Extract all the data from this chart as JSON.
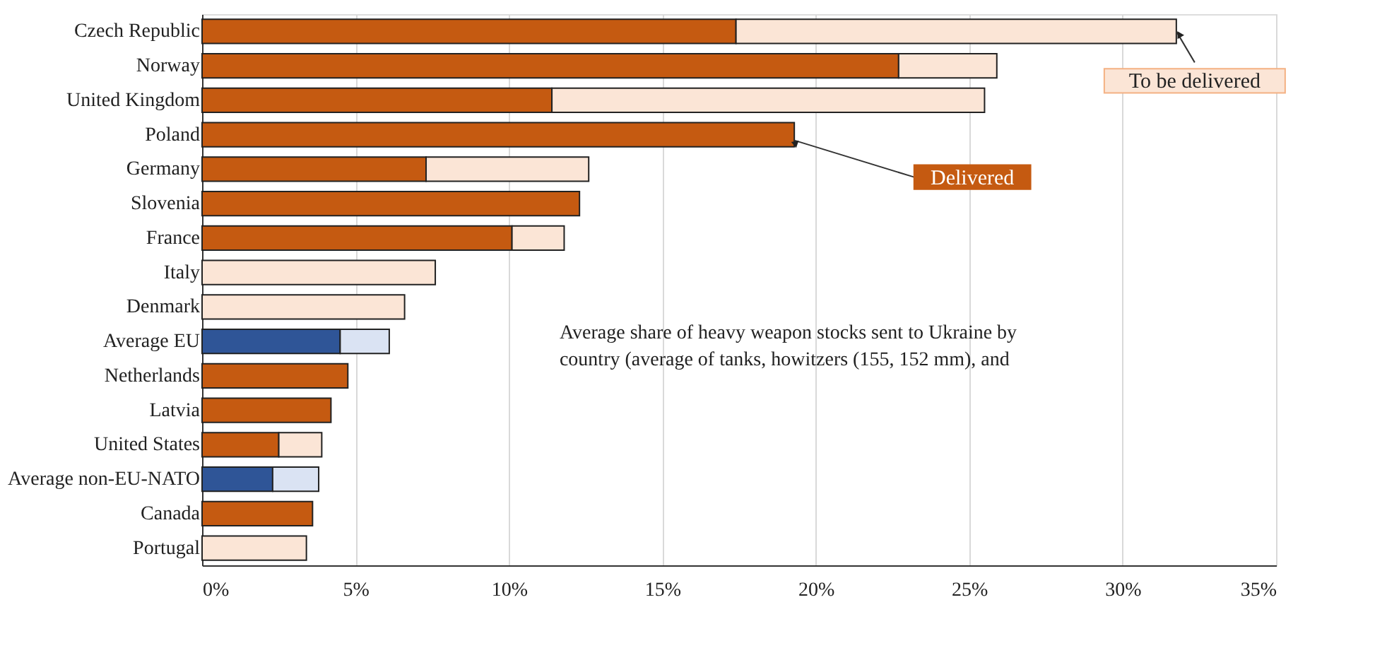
{
  "chart_data": {
    "type": "bar",
    "orientation": "horizontal",
    "stacked": true,
    "categories": [
      "Czech Republic",
      "Norway",
      "United Kingdom",
      "Poland",
      "Germany",
      "Slovenia",
      "France",
      "Italy",
      "Denmark",
      "Average EU",
      "Netherlands",
      "Latvia",
      "United States",
      "Average non-EU-NATO",
      "Canada",
      "Portugal"
    ],
    "series": [
      {
        "name": "Delivered",
        "color": "#c55a11",
        "colors": [
          "#c55a11",
          "#c55a11",
          "#c55a11",
          "#c55a11",
          "#c55a11",
          "#c55a11",
          "#c55a11",
          "#c55a11",
          "#c55a11",
          "#2f5597",
          "#c55a11",
          "#c55a11",
          "#c55a11",
          "#2f5597",
          "#c55a11",
          "#c55a11"
        ],
        "values": [
          17.4,
          22.7,
          11.4,
          19.3,
          7.3,
          12.3,
          10.1,
          null,
          null,
          4.5,
          4.75,
          4.2,
          2.5,
          2.3,
          3.6,
          null
        ]
      },
      {
        "name": "To be delivered",
        "color": "#fbe5d6",
        "colors": [
          "#fbe5d6",
          "#fbe5d6",
          "#fbe5d6",
          "#fbe5d6",
          "#fbe5d6",
          "#fbe5d6",
          "#fbe5d6",
          "#fbe5d6",
          "#fbe5d6",
          "#dae3f3",
          "#fbe5d6",
          "#fbe5d6",
          "#fbe5d6",
          "#dae3f3",
          "#fbe5d6",
          "#fbe5d6"
        ],
        "values": [
          14.35,
          3.2,
          14.1,
          null,
          5.3,
          null,
          1.7,
          7.6,
          6.6,
          1.6,
          null,
          null,
          1.4,
          1.5,
          null,
          3.4
        ]
      }
    ],
    "xlim": [
      0,
      35
    ],
    "xticks": [
      {
        "value": 0,
        "label": "0%"
      },
      {
        "value": 5,
        "label": "5%"
      },
      {
        "value": 10,
        "label": "10%"
      },
      {
        "value": 15,
        "label": "15%"
      },
      {
        "value": 20,
        "label": "20%"
      },
      {
        "value": 25,
        "label": "25%"
      },
      {
        "value": 30,
        "label": "30%"
      },
      {
        "value": 35,
        "label": "35%"
      }
    ],
    "grid": "x",
    "annotations": [
      "Average share of heavy weapon stocks sent to Ukraine by country (average of tanks, howitzers (155, 152 mm), and"
    ]
  }
}
